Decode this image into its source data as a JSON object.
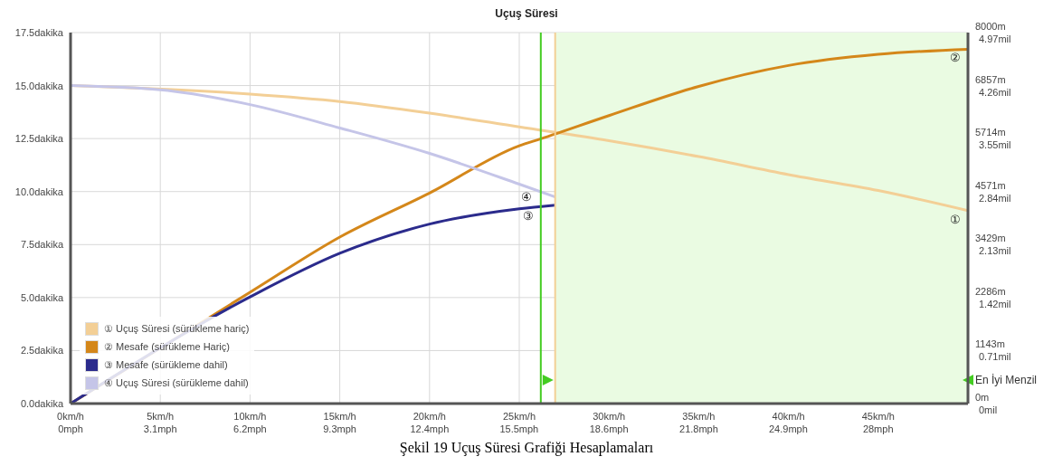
{
  "chart_data": {
    "type": "line",
    "title": "Uçuş Süresi",
    "xlim": [
      0,
      50
    ],
    "xticks": [
      {
        "value": 0,
        "label": "0km/h"
      },
      {
        "value": 5,
        "label": "5km/h"
      },
      {
        "value": 10,
        "label": "10km/h"
      },
      {
        "value": 15,
        "label": "15km/h"
      },
      {
        "value": 20,
        "label": "20km/h"
      },
      {
        "value": 25,
        "label": "25km/h"
      },
      {
        "value": 30,
        "label": "30km/h"
      },
      {
        "value": 35,
        "label": "35km/h"
      },
      {
        "value": 40,
        "label": "40km/h"
      },
      {
        "value": 45,
        "label": "45km/h"
      }
    ],
    "x2lim": [
      0,
      31.07
    ],
    "x2ticks": [
      {
        "value": 0,
        "label": "0mph"
      },
      {
        "value": 3.107,
        "label": "3.1mph"
      },
      {
        "value": 6.214,
        "label": "6.2mph"
      },
      {
        "value": 9.321,
        "label": "9.3mph"
      },
      {
        "value": 12.43,
        "label": "12.4mph"
      },
      {
        "value": 15.53,
        "label": "15.5mph"
      },
      {
        "value": 18.64,
        "label": "18.6mph"
      },
      {
        "value": 21.75,
        "label": "21.8mph"
      },
      {
        "value": 24.85,
        "label": "24.9mph"
      },
      {
        "value": 27.96,
        "label": "28mph"
      }
    ],
    "ylim": [
      0,
      17.5
    ],
    "yticks": [
      {
        "value": 0,
        "label": "0.0dakika"
      },
      {
        "value": 2.5,
        "label": "2.5dakika"
      },
      {
        "value": 5,
        "label": "5.0dakika"
      },
      {
        "value": 7.5,
        "label": "7.5dakika"
      },
      {
        "value": 10,
        "label": "10.0dakika"
      },
      {
        "value": 12.5,
        "label": "12.5dakika"
      },
      {
        "value": 15,
        "label": "15.0dakika"
      },
      {
        "value": 17.5,
        "label": "17.5dakika"
      }
    ],
    "y2lim": [
      0,
      8000
    ],
    "y2ticks": [
      {
        "value": 0,
        "label": "0m"
      },
      {
        "value": 1143,
        "label": "1143m"
      },
      {
        "value": 2286,
        "label": "2286m"
      },
      {
        "value": 3429,
        "label": "3429m"
      },
      {
        "value": 4571,
        "label": "4571m"
      },
      {
        "value": 5714,
        "label": "5714m"
      },
      {
        "value": 6857,
        "label": "6857m"
      },
      {
        "value": 8000,
        "label": "8000m"
      }
    ],
    "y3lim": [
      0,
      4.97
    ],
    "y3ticks": [
      {
        "value": 0,
        "label": "0mil"
      },
      {
        "value": 0.71,
        "label": "0.71mil"
      },
      {
        "value": 1.42,
        "label": "1.42mil"
      },
      {
        "value": 2.13,
        "label": "2.13mil"
      },
      {
        "value": 2.84,
        "label": "2.84mil"
      },
      {
        "value": 3.55,
        "label": "3.55mil"
      },
      {
        "value": 4.26,
        "label": "4.26mil"
      },
      {
        "value": 4.97,
        "label": "4.97mil"
      }
    ],
    "series": [
      {
        "name": "① Uçuş Süresi (sürükleme hariç)",
        "color": "#f3cf96",
        "x": [
          0,
          10,
          15,
          20,
          25,
          30,
          35,
          40,
          45,
          50
        ],
        "values": [
          15.0,
          14.6,
          14.25,
          13.7,
          13.05,
          12.4,
          11.65,
          10.8,
          10.05,
          9.1
        ]
      },
      {
        "name": "② Mesafe (sürükleme Hariç)",
        "color": "#d4871a",
        "axis": "y2",
        "x": [
          0,
          5,
          10,
          15,
          20,
          25,
          26.2,
          30,
          35,
          40,
          45,
          50
        ],
        "values": [
          0,
          null,
          2400,
          3590,
          4540,
          5560,
          5710,
          6210,
          6840,
          7290,
          7530,
          7640
        ]
      },
      {
        "name": "③ Mesafe (sürükleme dahil)",
        "color": "#2b2b8c",
        "axis": "y2",
        "x": [
          0,
          5,
          10,
          15,
          20,
          25,
          27
        ],
        "values": [
          0,
          null,
          2300,
          3240,
          3870,
          4200,
          4280
        ]
      },
      {
        "name": "④ Uçuş Süresi (sürükleme dahil)",
        "color": "#c5c5e8",
        "x": [
          0,
          5,
          10,
          15,
          20,
          25,
          27
        ],
        "values": [
          15.0,
          14.8,
          14.1,
          13.0,
          11.8,
          10.35,
          9.75
        ]
      }
    ],
    "ref_lines": [
      {
        "axis": "x",
        "value": 26.2,
        "color": "#44cc22"
      },
      {
        "axis": "x",
        "value": 27,
        "color": "#f3cf96"
      }
    ],
    "bands": [
      {
        "axis": "x",
        "from": 27,
        "to": 50,
        "color": "#eafbe2",
        "label": "En İyi Menzil"
      }
    ],
    "annotations": [
      "①",
      "②",
      "③",
      "④",
      "Şekil 19 Uçuş Süresi Grafiği Hesaplamaları"
    ],
    "legend": "bottom left",
    "grid": true,
    "marker": "none",
    "line_style": "solid"
  }
}
